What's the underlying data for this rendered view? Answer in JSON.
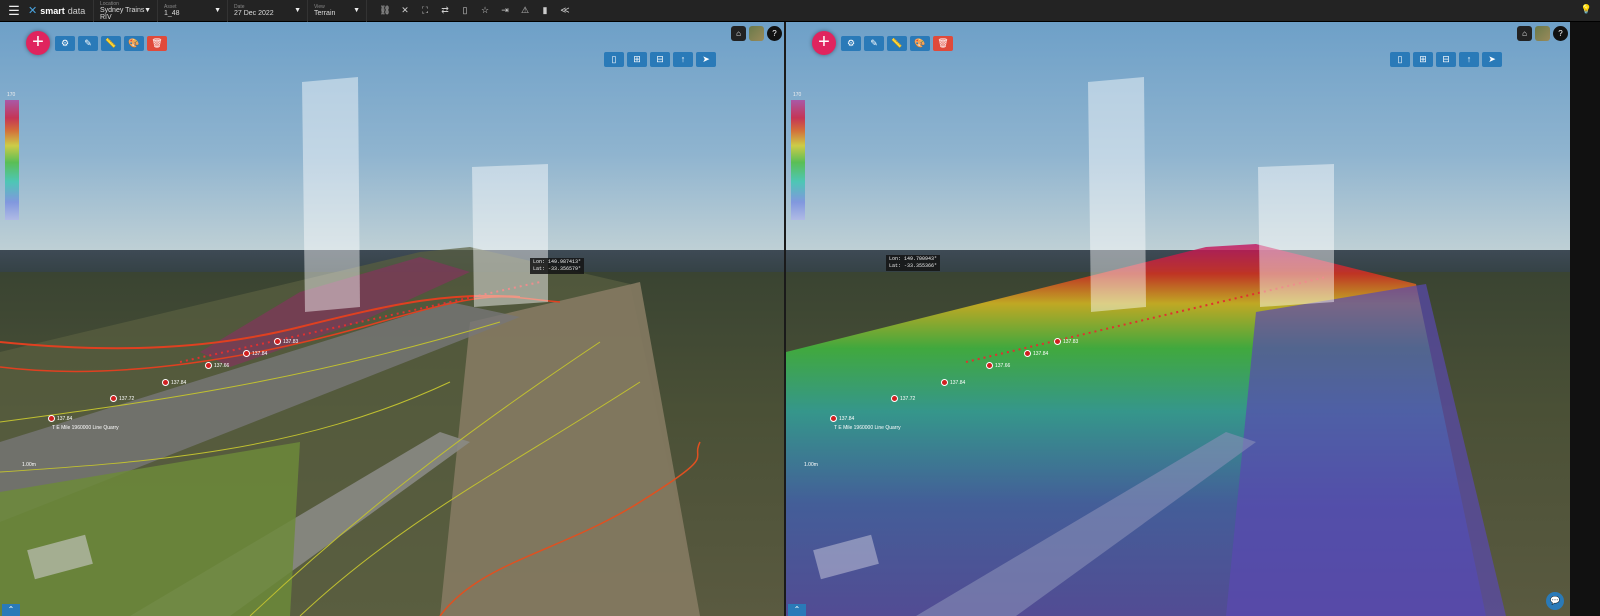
{
  "topbar": {
    "brand": {
      "name_bold": "smart",
      "name_light": "data"
    },
    "selectors": [
      {
        "label": "Location",
        "value": "Sydney Trains RIV"
      },
      {
        "label": "Asset",
        "value": "1_48"
      },
      {
        "label": "Date",
        "value": "27 Dec 2022"
      },
      {
        "label": "View",
        "value": "Terrain"
      }
    ],
    "tools": [
      "link-icon",
      "close-icon",
      "fullscreen-icon",
      "swap-icon",
      "document-icon",
      "star-icon",
      "export-icon",
      "warning-icon",
      "trash-icon",
      "share-icon"
    ]
  },
  "panes": [
    {
      "id": "left",
      "legend_top": "170",
      "coord": {
        "lon": "Lon: 149.987413°",
        "lat": "Lat: -33.356579°"
      },
      "points": [
        "137.84",
        "137.72",
        "137.84",
        "137.66",
        "137.84",
        "137.83"
      ],
      "track_label": "T E Mile 1960000 Line Quarry",
      "scale_label": "1.00m"
    },
    {
      "id": "right",
      "legend_top": "170",
      "coord": {
        "lon": "Lon: 149.700943°",
        "lat": "Lat: -33.355366°"
      },
      "points": [
        "137.84",
        "137.72",
        "137.84",
        "137.66",
        "137.84",
        "137.83"
      ],
      "track_label": "T E Mile 1960000 Line Quarry",
      "scale_label": "1.00m"
    }
  ],
  "colors": {
    "add": "#e0245e",
    "toolbar": "#2a7ab8",
    "delete": "#e04a3a",
    "topbar": "#232323"
  }
}
